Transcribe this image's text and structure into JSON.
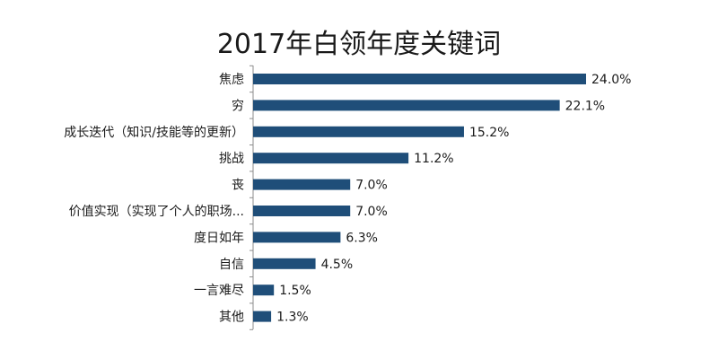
{
  "chart_data": {
    "type": "bar",
    "orientation": "horizontal",
    "title": "2017年白领年度关键词",
    "categories": [
      "焦虑",
      "穷",
      "成长迭代（知识/技能等的更新）",
      "挑战",
      "丧",
      "价值实现（实现了个人的职场...",
      "度日如年",
      "自信",
      "一言难尽",
      "其他"
    ],
    "values": [
      24.0,
      22.1,
      15.2,
      11.2,
      7.0,
      7.0,
      6.3,
      4.5,
      1.5,
      1.3
    ],
    "value_labels": [
      "24.0%",
      "22.1%",
      "15.2%",
      "11.2%",
      "7.0%",
      "7.0%",
      "6.3%",
      "4.5%",
      "1.5%",
      "1.3%"
    ],
    "bar_color": "#1f4e79",
    "axis_color": "#8c8c8c",
    "xlim": [
      0,
      24.0
    ],
    "grid": false,
    "legend": "none"
  }
}
